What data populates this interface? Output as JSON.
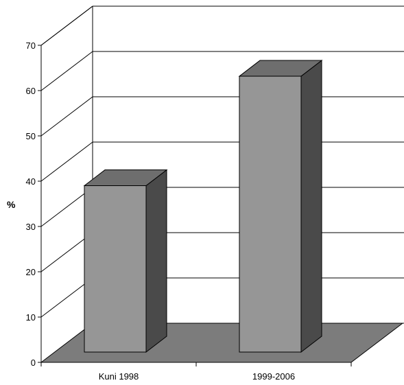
{
  "chart_data": {
    "type": "bar",
    "title": "",
    "xlabel": "",
    "ylabel": "%",
    "categories": [
      "Kuni 1998",
      "1999-2006"
    ],
    "series": [
      {
        "values": [
          38,
          63
        ]
      }
    ],
    "ylim": [
      0,
      70
    ],
    "yticks": [
      "0",
      "10",
      "20",
      "30",
      "40",
      "50",
      "60",
      "70"
    ],
    "grid": true,
    "legend": "none",
    "style": "3d",
    "colors": {
      "bar_front": "#969696",
      "bar_side": "#4a4a4a",
      "bar_top": "#6e6e6e",
      "floor": "#7c7c7c",
      "grid": "#000000"
    }
  }
}
